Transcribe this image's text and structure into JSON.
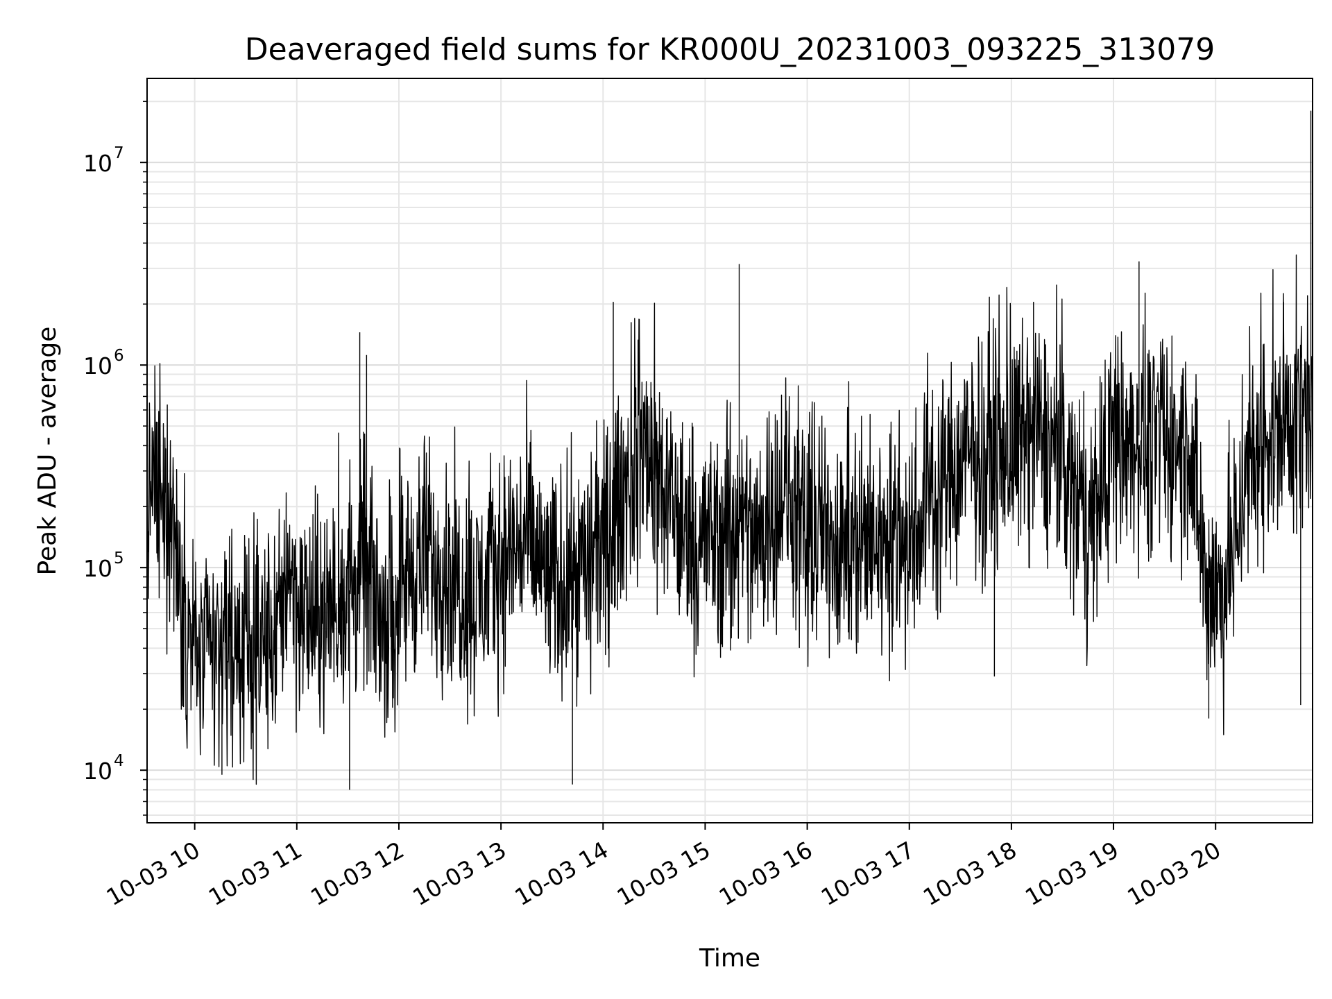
{
  "chart_data": {
    "type": "line",
    "title": "Deaveraged field sums for KR000U_20231003_093225_313079",
    "xlabel": "Time",
    "ylabel": "Peak ADU - average",
    "x_scale": "time",
    "y_scale": "log",
    "xlim": [
      "2023-10-03T09:32",
      "2023-10-03T20:57"
    ],
    "ylim": [
      5500,
      26000000
    ],
    "grid": true,
    "x_ticks": [
      {
        "value": "2023-10-03T10:00",
        "label": "10-03 10"
      },
      {
        "value": "2023-10-03T11:00",
        "label": "10-03 11"
      },
      {
        "value": "2023-10-03T12:00",
        "label": "10-03 12"
      },
      {
        "value": "2023-10-03T13:00",
        "label": "10-03 13"
      },
      {
        "value": "2023-10-03T14:00",
        "label": "10-03 14"
      },
      {
        "value": "2023-10-03T15:00",
        "label": "10-03 15"
      },
      {
        "value": "2023-10-03T16:00",
        "label": "10-03 16"
      },
      {
        "value": "2023-10-03T17:00",
        "label": "10-03 17"
      },
      {
        "value": "2023-10-03T18:00",
        "label": "10-03 18"
      },
      {
        "value": "2023-10-03T19:00",
        "label": "10-03 19"
      },
      {
        "value": "2023-10-03T20:00",
        "label": "10-03 20"
      }
    ],
    "y_ticks": [
      {
        "value": 10000,
        "base": "10",
        "exp": "4"
      },
      {
        "value": 100000,
        "base": "10",
        "exp": "5"
      },
      {
        "value": 1000000,
        "base": "10",
        "exp": "6"
      },
      {
        "value": 10000000,
        "base": "10",
        "exp": "7"
      }
    ],
    "series": [
      {
        "color": "#000000",
        "points": [
          [
            "2023-10-03T09:32",
            180000
          ],
          [
            "2023-10-03T09:36",
            300000
          ],
          [
            "2023-10-03T09:40",
            150000
          ],
          [
            "2023-10-03T09:45",
            220000
          ],
          [
            "2023-10-03T09:50",
            110000
          ],
          [
            "2023-10-03T09:55",
            60000
          ],
          [
            "2023-10-03T10:00",
            40000
          ],
          [
            "2023-10-03T10:10",
            35000
          ],
          [
            "2023-10-03T10:20",
            45000
          ],
          [
            "2023-10-03T10:30",
            38000
          ],
          [
            "2023-10-03T10:40",
            42000
          ],
          [
            "2023-10-03T10:50",
            48000
          ],
          [
            "2023-10-03T10:55",
            120000
          ],
          [
            "2023-10-03T11:00",
            65000
          ],
          [
            "2023-10-03T11:10",
            55000
          ],
          [
            "2023-10-03T11:20",
            60000
          ],
          [
            "2023-10-03T11:30",
            75000
          ],
          [
            "2023-10-03T11:40",
            100000
          ],
          [
            "2023-10-03T11:50",
            55000
          ],
          [
            "2023-10-03T12:00",
            80000
          ],
          [
            "2023-10-03T12:15",
            120000
          ],
          [
            "2023-10-03T12:30",
            95000
          ],
          [
            "2023-10-03T12:45",
            70000
          ],
          [
            "2023-10-03T13:00",
            110000
          ],
          [
            "2023-10-03T13:15",
            140000
          ],
          [
            "2023-10-03T13:30",
            80000
          ],
          [
            "2023-10-03T13:45",
            100000
          ],
          [
            "2023-10-03T14:00",
            120000
          ],
          [
            "2023-10-03T14:15",
            280000
          ],
          [
            "2023-10-03T14:25",
            400000
          ],
          [
            "2023-10-03T14:35",
            250000
          ],
          [
            "2023-10-03T14:45",
            160000
          ],
          [
            "2023-10-03T15:00",
            140000
          ],
          [
            "2023-10-03T15:15",
            150000
          ],
          [
            "2023-10-03T15:30",
            130000
          ],
          [
            "2023-10-03T15:45",
            250000
          ],
          [
            "2023-10-03T16:00",
            140000
          ],
          [
            "2023-10-03T16:15",
            150000
          ],
          [
            "2023-10-03T16:30",
            130000
          ],
          [
            "2023-10-03T16:45",
            140000
          ],
          [
            "2023-10-03T17:00",
            150000
          ],
          [
            "2023-10-03T17:15",
            250000
          ],
          [
            "2023-10-03T17:30",
            320000
          ],
          [
            "2023-10-03T17:45",
            400000
          ],
          [
            "2023-10-03T18:00",
            380000
          ],
          [
            "2023-10-03T18:15",
            450000
          ],
          [
            "2023-10-03T18:30",
            350000
          ],
          [
            "2023-10-03T18:45",
            150000
          ],
          [
            "2023-10-03T19:00",
            380000
          ],
          [
            "2023-10-03T19:15",
            450000
          ],
          [
            "2023-10-03T19:30",
            420000
          ],
          [
            "2023-10-03T19:45",
            400000
          ],
          [
            "2023-10-03T19:55",
            80000
          ],
          [
            "2023-10-03T20:05",
            75000
          ],
          [
            "2023-10-03T20:15",
            200000
          ],
          [
            "2023-10-03T20:30",
            450000
          ],
          [
            "2023-10-03T20:45",
            550000
          ],
          [
            "2023-10-03T20:57",
            600000
          ]
        ],
        "peaks": [
          [
            "2023-10-03T11:37",
            1450000
          ],
          [
            "2023-10-03T11:41",
            1120000
          ],
          [
            "2023-10-03T14:06",
            2050000
          ],
          [
            "2023-10-03T15:20",
            3150000
          ],
          [
            "2023-10-03T18:13",
            2050000
          ],
          [
            "2023-10-03T19:15",
            3250000
          ],
          [
            "2023-10-03T20:40",
            2050000
          ],
          [
            "2023-10-03T20:56",
            18000000
          ]
        ],
        "troughs": [
          [
            "2023-10-03T11:31",
            8000
          ],
          [
            "2023-10-03T13:42",
            8500
          ],
          [
            "2023-10-03T10:16",
            9500
          ],
          [
            "2023-10-03T17:50",
            29000
          ],
          [
            "2023-10-03T19:56",
            18000
          ],
          [
            "2023-10-03T20:50",
            21000
          ]
        ]
      }
    ]
  }
}
